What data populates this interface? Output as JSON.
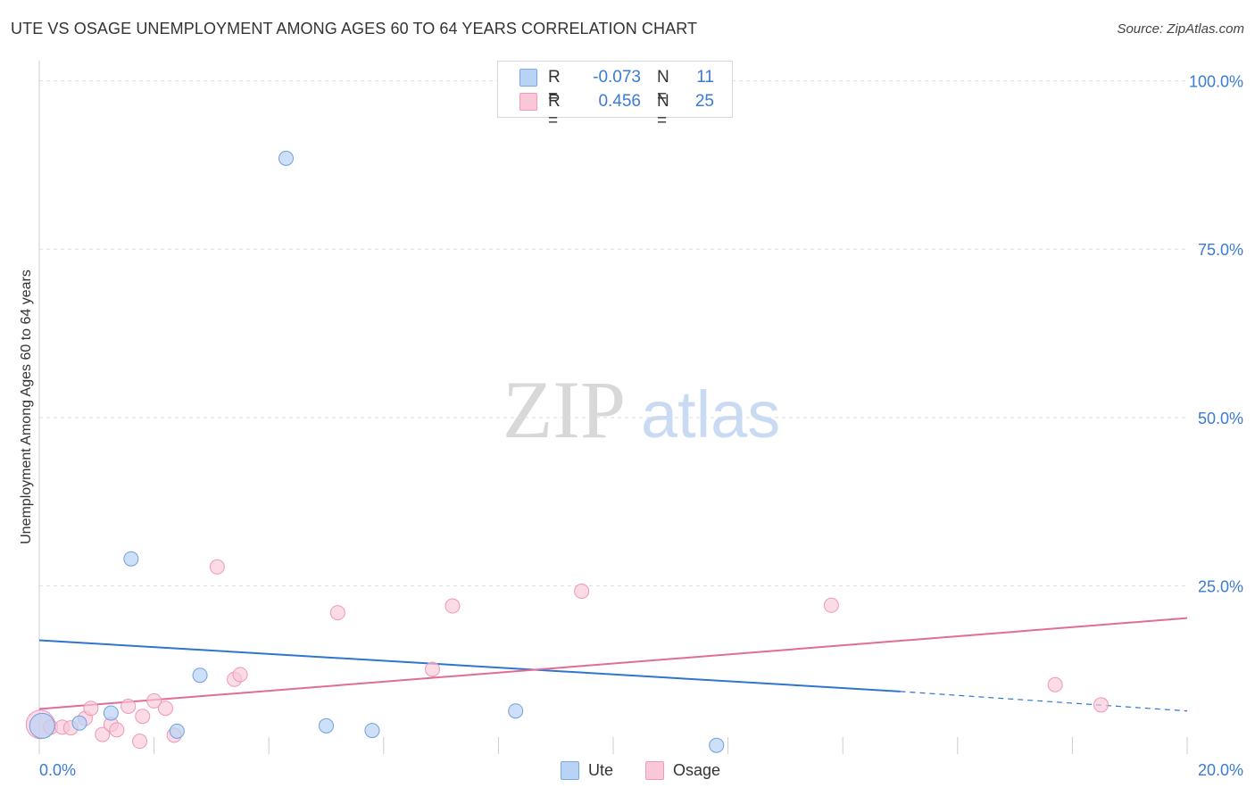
{
  "title": "UTE VS OSAGE UNEMPLOYMENT AMONG AGES 60 TO 64 YEARS CORRELATION CHART",
  "source": "Source: ZipAtlas.com",
  "watermark": {
    "zip": "ZIP",
    "atlas": "atlas"
  },
  "legend": {
    "rows": [
      {
        "name": "Ute",
        "r_label": "R =",
        "r_value": "-0.073",
        "n_label": "N =",
        "n_value": "11",
        "fill": "#b9d3f5",
        "stroke": "#7aaae6"
      },
      {
        "name": "Osage",
        "r_label": "R =",
        "r_value": "0.456",
        "n_label": "N =",
        "n_value": "25",
        "fill": "#f9c8d8",
        "stroke": "#f09ab6"
      }
    ]
  },
  "bottom_legend": [
    {
      "label": "Ute",
      "fill": "#b9d3f5",
      "stroke": "#7aaae6"
    },
    {
      "label": "Osage",
      "fill": "#f9c8d8",
      "stroke": "#f09ab6"
    }
  ],
  "colors": {
    "ute_fill": "#b9d3f5",
    "ute_stroke": "#6f9fe0",
    "ute_line": "#2f74d0",
    "osage_fill": "#f9c8d8",
    "osage_stroke": "#ee98b5",
    "osage_line": "#e06d98",
    "tick_label": "#3a7bd5",
    "grid": "#dddddd",
    "axis": "#cccccc"
  },
  "chart_data": {
    "type": "scatter",
    "title": "UTE VS OSAGE UNEMPLOYMENT AMONG AGES 60 TO 64 YEARS CORRELATION CHART",
    "xlabel": "",
    "ylabel": "Unemployment Among Ages 60 to 64 years",
    "xlim": [
      0,
      20
    ],
    "ylim": [
      0,
      103
    ],
    "x_tick_labels": [
      {
        "value": 0,
        "label": "0.0%"
      },
      {
        "value": 20,
        "label": "20.0%"
      }
    ],
    "y_tick_labels": [
      {
        "value": 25,
        "label": "25.0%"
      },
      {
        "value": 50,
        "label": "50.0%"
      },
      {
        "value": 75,
        "label": "75.0%"
      },
      {
        "value": 100,
        "label": "100.0%"
      }
    ],
    "x_minor_ticks": [
      0,
      2,
      4,
      6,
      8,
      10,
      12,
      14,
      16,
      18,
      20
    ],
    "y_grid": [
      25,
      50,
      75,
      100
    ],
    "series": [
      {
        "name": "Ute",
        "points": [
          {
            "x": 0.05,
            "y": 4.2
          },
          {
            "x": 0.7,
            "y": 4.6
          },
          {
            "x": 1.25,
            "y": 6.1
          },
          {
            "x": 1.6,
            "y": 29.0
          },
          {
            "x": 2.4,
            "y": 3.4
          },
          {
            "x": 2.8,
            "y": 11.7
          },
          {
            "x": 4.3,
            "y": 88.5
          },
          {
            "x": 5.0,
            "y": 4.2
          },
          {
            "x": 5.8,
            "y": 3.5
          },
          {
            "x": 8.3,
            "y": 6.4
          },
          {
            "x": 11.8,
            "y": 1.3
          }
        ],
        "trend": {
          "x0": 0,
          "y0": 16.9,
          "x1": 15.0,
          "y1": 9.3,
          "dash_x1": 20,
          "dash_y1": 6.4
        }
      },
      {
        "name": "Osage",
        "points": [
          {
            "x": 0.02,
            "y": 4.4
          },
          {
            "x": 0.2,
            "y": 4.0
          },
          {
            "x": 0.4,
            "y": 4.0
          },
          {
            "x": 0.55,
            "y": 3.9
          },
          {
            "x": 0.8,
            "y": 5.3
          },
          {
            "x": 0.9,
            "y": 6.8
          },
          {
            "x": 1.1,
            "y": 2.9
          },
          {
            "x": 1.25,
            "y": 4.4
          },
          {
            "x": 1.35,
            "y": 3.6
          },
          {
            "x": 1.55,
            "y": 7.1
          },
          {
            "x": 1.75,
            "y": 1.9
          },
          {
            "x": 1.8,
            "y": 5.6
          },
          {
            "x": 2.0,
            "y": 7.9
          },
          {
            "x": 2.2,
            "y": 6.8
          },
          {
            "x": 2.35,
            "y": 2.8
          },
          {
            "x": 3.1,
            "y": 27.8
          },
          {
            "x": 3.4,
            "y": 11.1
          },
          {
            "x": 3.5,
            "y": 11.8
          },
          {
            "x": 5.2,
            "y": 21.0
          },
          {
            "x": 6.85,
            "y": 12.6
          },
          {
            "x": 7.2,
            "y": 22.0
          },
          {
            "x": 9.45,
            "y": 24.2
          },
          {
            "x": 13.8,
            "y": 22.1
          },
          {
            "x": 17.7,
            "y": 10.3
          },
          {
            "x": 18.5,
            "y": 7.3
          }
        ],
        "trend": {
          "x0": 0,
          "y0": 6.7,
          "x1": 20,
          "y1": 20.2
        }
      }
    ]
  }
}
